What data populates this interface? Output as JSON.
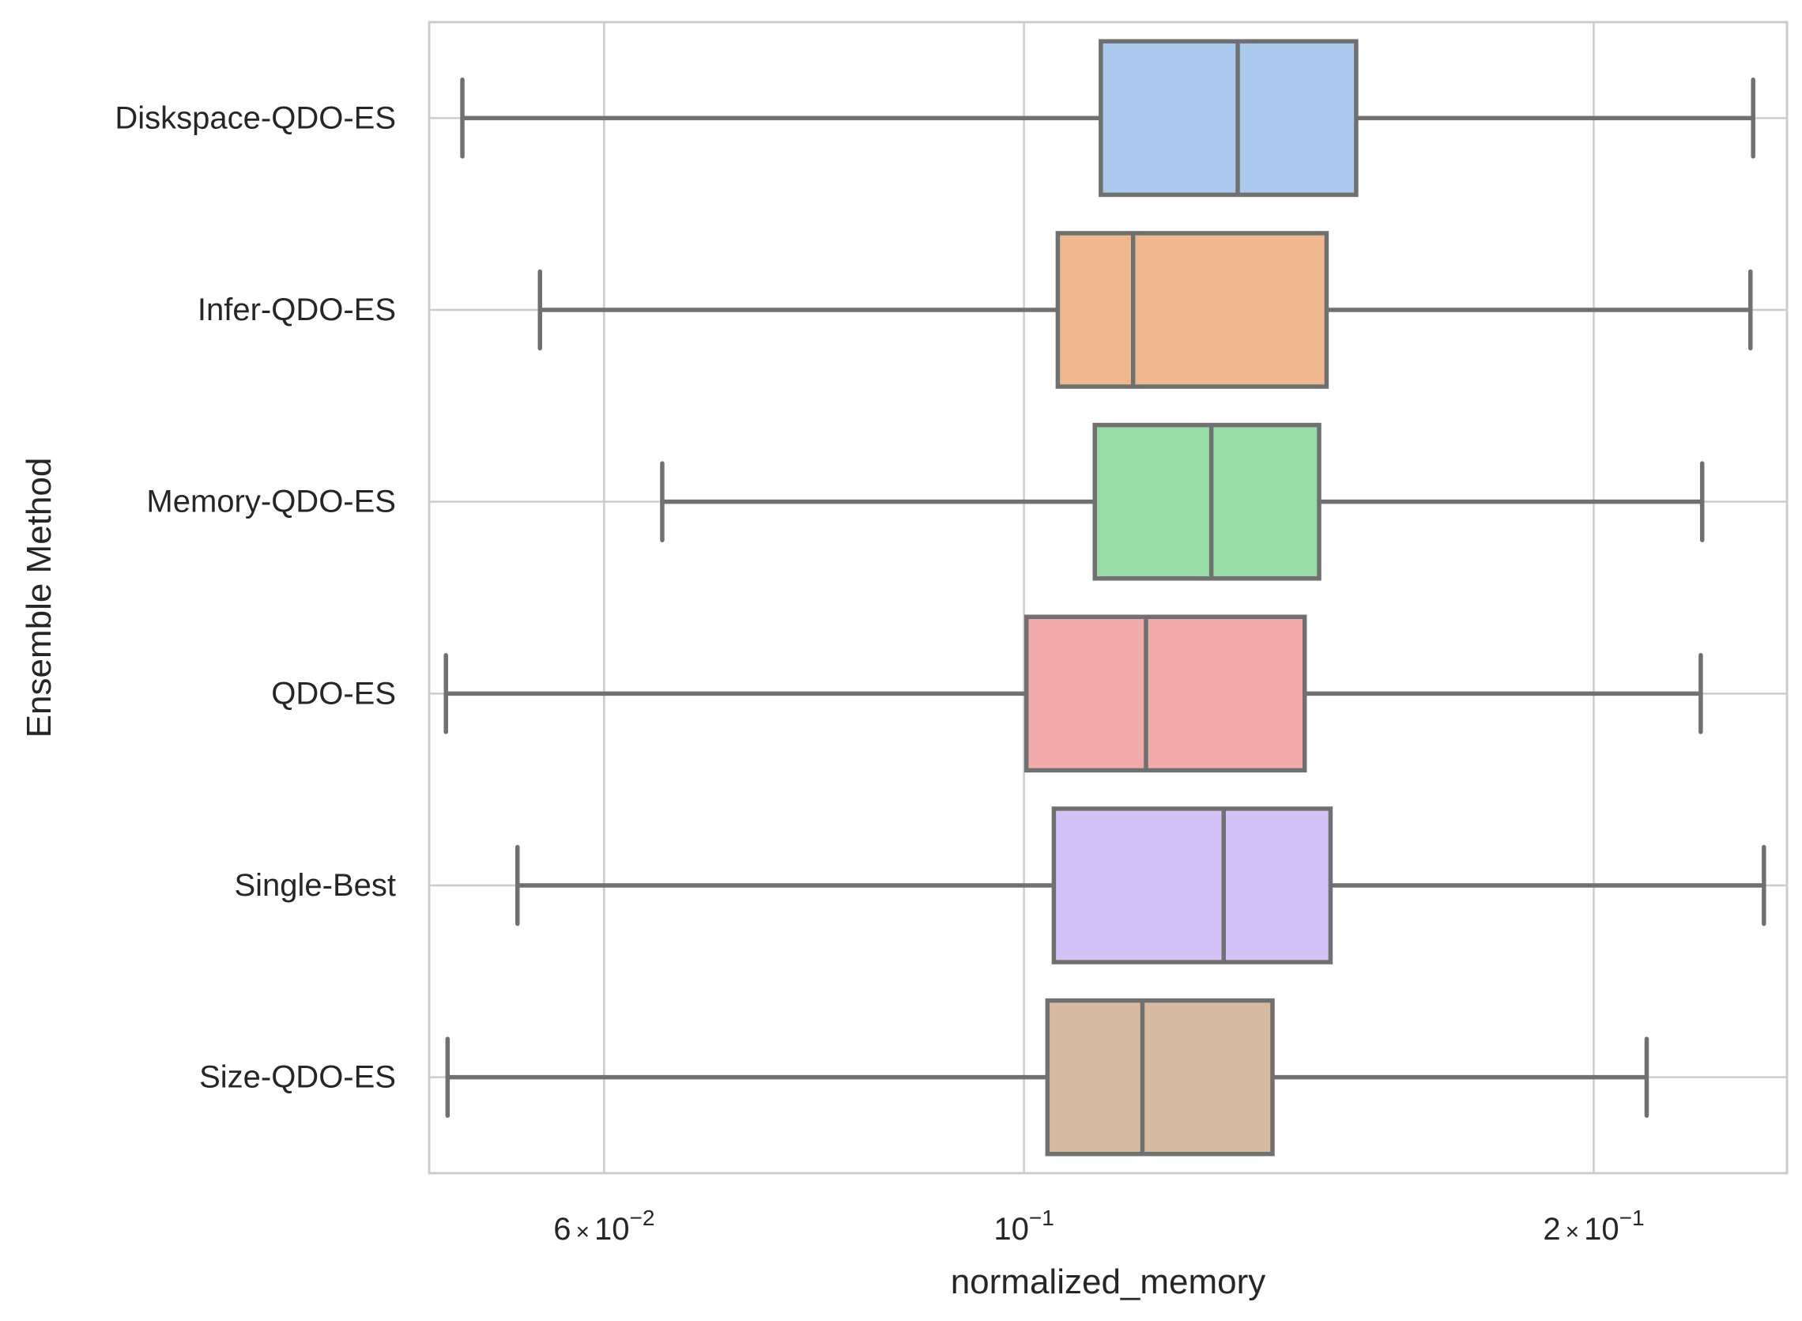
{
  "chart_data": {
    "type": "boxplot",
    "orientation": "horizontal",
    "xlabel": "normalized_memory",
    "ylabel": "Ensemble Method",
    "xscale": "log",
    "xlim": [
      0.0485,
      0.253
    ],
    "xticks": [
      {
        "value": 0.06,
        "mantissa": "6",
        "exponent": "−2"
      },
      {
        "value": 0.1,
        "mantissa": "",
        "exponent": "−1"
      },
      {
        "value": 0.2,
        "mantissa": "2",
        "exponent": "−1"
      }
    ],
    "grid": true,
    "colors": {
      "edge": "#707070",
      "grid": "#cccccc",
      "spine": "#cccccc",
      "text": "#262626"
    },
    "series": [
      {
        "name": "Diskspace-QDO-ES",
        "color": "#abc9ed",
        "whisker_low": 0.0505,
        "q1": 0.1098,
        "median": 0.1297,
        "q3": 0.1498,
        "whisker_high": 0.2428
      },
      {
        "name": "Infer-QDO-ES",
        "color": "#f0b891",
        "whisker_low": 0.0555,
        "q1": 0.1042,
        "median": 0.1142,
        "q3": 0.1445,
        "whisker_high": 0.242
      },
      {
        "name": "Memory-QDO-ES",
        "color": "#99dba7",
        "whisker_low": 0.0644,
        "q1": 0.109,
        "median": 0.1256,
        "q3": 0.1432,
        "whisker_high": 0.2282
      },
      {
        "name": "QDO-ES",
        "color": "#f1abaa",
        "whisker_low": 0.0495,
        "q1": 0.1003,
        "median": 0.116,
        "q3": 0.1407,
        "whisker_high": 0.2278
      },
      {
        "name": "Single-Best",
        "color": "#d3c2f5",
        "whisker_low": 0.054,
        "q1": 0.1037,
        "median": 0.1275,
        "q3": 0.1452,
        "whisker_high": 0.246
      },
      {
        "name": "Size-QDO-ES",
        "color": "#d6bba2",
        "whisker_low": 0.0496,
        "q1": 0.1029,
        "median": 0.1155,
        "q3": 0.1353,
        "whisker_high": 0.2133
      }
    ]
  }
}
